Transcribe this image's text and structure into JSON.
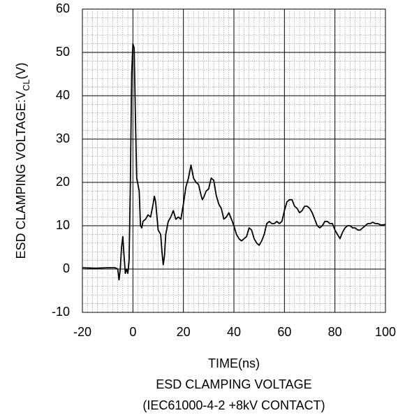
{
  "chart_data": {
    "type": "line",
    "ylabel": "ESD CLAMPING VOLTAGE:V",
    "ylabel_subscript": "CL",
    "ylabel_unit": "(V)",
    "xlabel": "TIME(ns)",
    "title": "ESD CLAMPING VOLTAGE",
    "subtitle": "(IEC61000-4-2   +8kV CONTACT)",
    "xlim": [
      -20,
      100
    ],
    "ylim": [
      -10,
      60
    ],
    "xticks": [
      -20,
      0,
      20,
      40,
      60,
      80,
      100
    ],
    "yticks": [
      -10,
      0,
      10,
      20,
      30,
      40,
      50,
      60
    ],
    "grid": true,
    "minor_grid": true,
    "x": [
      -20,
      -15,
      -10,
      -7,
      -6,
      -5.5,
      -5,
      -4.5,
      -4,
      -3.5,
      -3,
      -2.5,
      -2,
      -1.5,
      -1,
      -0.5,
      0,
      0.5,
      1,
      1.5,
      2,
      2.5,
      3,
      3.5,
      4,
      5,
      6,
      7,
      8,
      8.5,
      9,
      10,
      11,
      11.5,
      12,
      12.5,
      13,
      14,
      15,
      16,
      17,
      18,
      19,
      20,
      21,
      22,
      23,
      24,
      25,
      26,
      27,
      27.5,
      28,
      29,
      30,
      31,
      32,
      33,
      34,
      35,
      36,
      37,
      38,
      39,
      40,
      41,
      42,
      43,
      44,
      45,
      46,
      47,
      48,
      49,
      50,
      51,
      52,
      53,
      54,
      55,
      56,
      57,
      58,
      59,
      60,
      61,
      62,
      63,
      64,
      65,
      66,
      67,
      68,
      69,
      70,
      71,
      72,
      73,
      74,
      75,
      76,
      77,
      78,
      79,
      80,
      81,
      82,
      83,
      84,
      85,
      86,
      87,
      88,
      89,
      90,
      91,
      92,
      93,
      94,
      95,
      96,
      97,
      98,
      99,
      100
    ],
    "series": [
      {
        "color": "#000000",
        "values": [
          0.3,
          0.2,
          0.3,
          0.3,
          0,
          -2.5,
          0,
          5,
          7.5,
          3,
          -1,
          0,
          -1,
          2,
          20,
          45,
          52,
          51,
          35,
          21,
          19.5,
          18,
          10,
          9.5,
          11,
          11.5,
          12.5,
          12,
          15,
          16.8,
          15.5,
          9,
          8,
          4,
          1,
          3,
          8,
          11,
          12,
          13.5,
          11.5,
          12,
          11.5,
          15,
          19,
          21,
          24,
          21,
          20,
          19.5,
          17,
          16,
          16.5,
          18,
          18.5,
          21,
          20.5,
          17,
          15,
          14,
          11.5,
          12,
          13,
          11.5,
          10,
          8,
          7,
          6.5,
          7,
          7.5,
          9.5,
          9,
          7,
          6,
          5.5,
          6.5,
          8,
          10.5,
          11,
          10.5,
          10.5,
          11,
          10.5,
          11,
          13.5,
          15.5,
          16,
          16,
          14.5,
          14,
          13,
          13.5,
          14.5,
          14.5,
          14,
          13,
          11.5,
          10,
          9.5,
          10,
          11,
          11,
          10.5,
          10.5,
          9,
          8,
          7,
          8.5,
          9.5,
          10,
          10,
          9.5,
          9.5,
          9,
          9,
          9.5,
          10,
          10.5,
          10.5,
          10.8,
          10.5,
          10.5,
          10.2,
          10.2,
          10.3
        ]
      }
    ]
  }
}
